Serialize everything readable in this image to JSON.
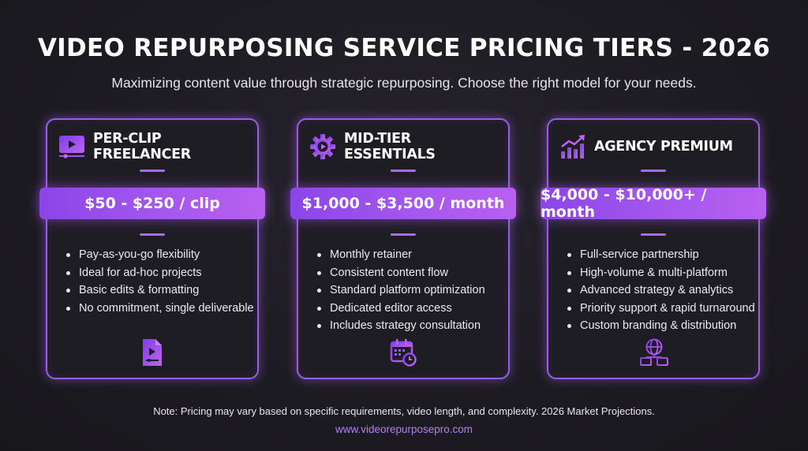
{
  "header": {
    "title": "VIDEO REPURPOSING SERVICE PRICING TIERS - 2026",
    "subtitle": "Maximizing content value through strategic repurposing. Choose the right model for your needs."
  },
  "tiers": [
    {
      "name": "PER-CLIP FREELANCER",
      "icon": "video-player-icon",
      "price": "$50 - $250 / clip",
      "features": [
        "Pay-as-you-go flexibility",
        "Ideal for ad-hoc projects",
        "Basic edits & formatting",
        "No commitment, single deliverable"
      ],
      "bottom_icon": "video-file-icon"
    },
    {
      "name": "MID-TIER ESSENTIALS",
      "icon": "gear-video-icon",
      "price": "$1,000 - $3,500 / month",
      "features": [
        "Monthly retainer",
        "Consistent content flow",
        "Standard platform optimization",
        "Dedicated editor access",
        "Includes strategy consultation"
      ],
      "bottom_icon": "calendar-clock-icon"
    },
    {
      "name": "AGENCY PREMIUM",
      "icon": "growth-chart-icon",
      "price": "$4,000 - $10,000+ / month",
      "features": [
        "Full-service partnership",
        "High-volume & multi-platform",
        "Advanced strategy & analytics",
        "Priority support & rapid turnaround",
        "Custom branding & distribution"
      ],
      "bottom_icon": "globe-network-icon"
    }
  ],
  "footer": {
    "note": "Note: Pricing may vary based on specific requirements, video length, and complexity. 2026 Market Projections.",
    "url": "www.videorepurposepro.com"
  },
  "colors": {
    "accent": "#9b5de5",
    "background": "#1d1b22"
  }
}
